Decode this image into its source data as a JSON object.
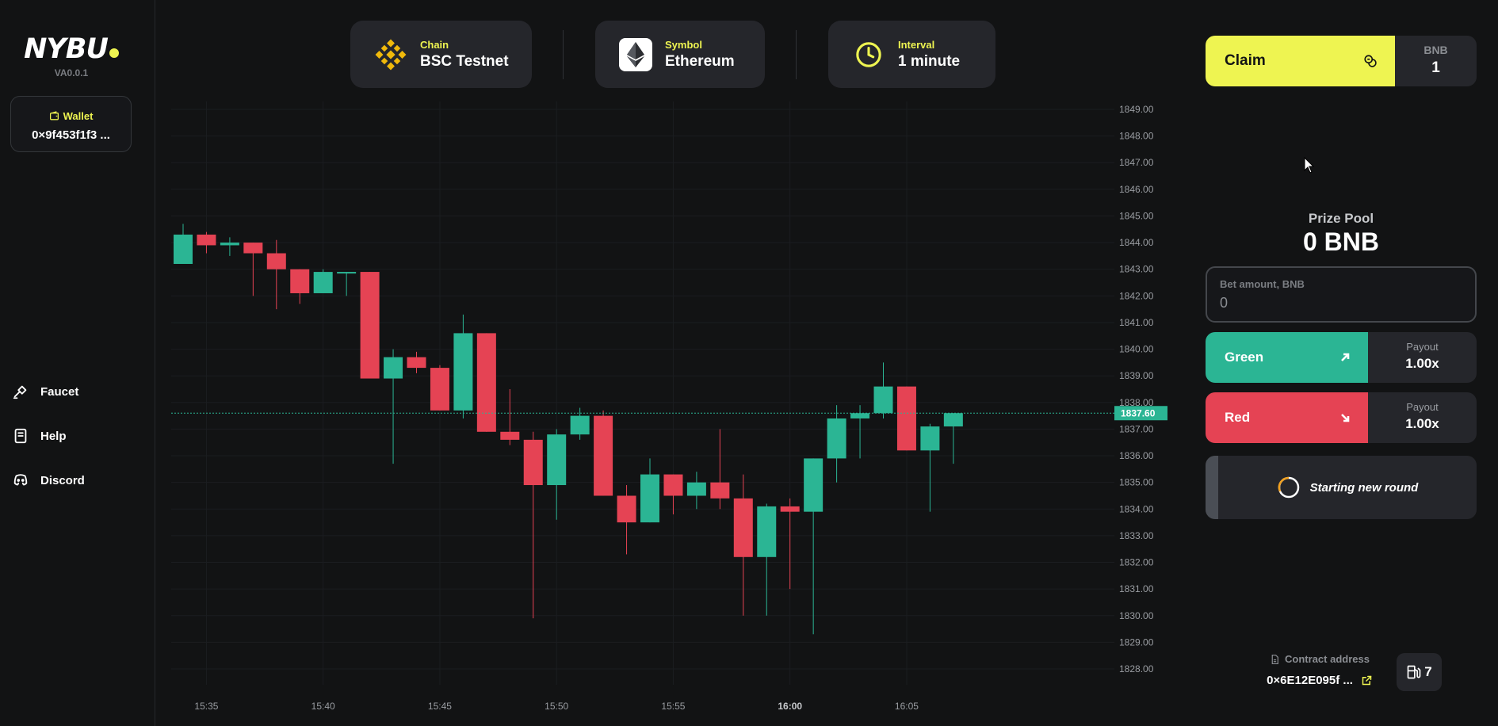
{
  "app": {
    "logo": "NYBU",
    "version": "VA0.0.1"
  },
  "wallet": {
    "label": "Wallet",
    "address": "0×9f453f1f3 ..."
  },
  "nav": {
    "faucet": "Faucet",
    "help": "Help",
    "discord": "Discord"
  },
  "selectors": {
    "chain": {
      "label": "Chain",
      "value": "BSC Testnet",
      "icon": "binance-icon"
    },
    "symbol": {
      "label": "Symbol",
      "value": "Ethereum",
      "icon": "ethereum-icon"
    },
    "interval": {
      "label": "Interval",
      "value": "1 minute",
      "icon": "clock-icon"
    }
  },
  "claim": {
    "label": "Claim",
    "currency": "BNB",
    "amount": "1"
  },
  "prize_pool": {
    "label": "Prize Pool",
    "value": "0 BNB"
  },
  "bet": {
    "label": "Bet amount, BNB",
    "value": "0"
  },
  "green": {
    "label": "Green",
    "payout_label": "Payout",
    "payout": "1.00x"
  },
  "red": {
    "label": "Red",
    "payout_label": "Payout",
    "payout": "1.00x"
  },
  "status": {
    "text": "Starting new round"
  },
  "contract": {
    "label": "Contract address",
    "address": "0×6E12E095f ..."
  },
  "gas": {
    "value": "7"
  },
  "colors": {
    "accent": "#eef451",
    "up": "#2bb594",
    "down": "#e54354",
    "background": "#121314",
    "panel": "#25262b"
  },
  "chart_data": {
    "type": "candlestick",
    "ylim": [
      1828,
      1849
    ],
    "y_ticks": [
      "1849.00",
      "1848.00",
      "1847.00",
      "1846.00",
      "1845.00",
      "1844.00",
      "1843.00",
      "1842.00",
      "1841.00",
      "1840.00",
      "1839.00",
      "1838.00",
      "1837.00",
      "1836.00",
      "1835.00",
      "1834.00",
      "1833.00",
      "1832.00",
      "1831.00",
      "1830.00",
      "1829.00",
      "1828.00"
    ],
    "x_ticks": [
      "15:35",
      "15:40",
      "15:45",
      "15:50",
      "15:55",
      "16:00",
      "16:05"
    ],
    "x_tick_bold": "16:00",
    "current_price": 1837.6,
    "current_price_label": "1837.60",
    "candles": [
      {
        "o": 1843.2,
        "h": 1844.7,
        "l": 1843.2,
        "c": 1844.3
      },
      {
        "o": 1844.3,
        "h": 1844.4,
        "l": 1843.6,
        "c": 1843.9
      },
      {
        "o": 1843.9,
        "h": 1844.2,
        "l": 1843.5,
        "c": 1844.0
      },
      {
        "o": 1844.0,
        "h": 1844.0,
        "l": 1842.0,
        "c": 1843.6
      },
      {
        "o": 1843.6,
        "h": 1844.1,
        "l": 1841.5,
        "c": 1843.0
      },
      {
        "o": 1843.0,
        "h": 1843.0,
        "l": 1841.7,
        "c": 1842.1
      },
      {
        "o": 1842.1,
        "h": 1843.0,
        "l": 1842.1,
        "c": 1842.9
      },
      {
        "o": 1842.9,
        "h": 1842.9,
        "l": 1842.0,
        "c": 1842.9
      },
      {
        "o": 1842.9,
        "h": 1842.9,
        "l": 1838.9,
        "c": 1838.9
      },
      {
        "o": 1838.9,
        "h": 1840.0,
        "l": 1835.7,
        "c": 1839.7
      },
      {
        "o": 1839.7,
        "h": 1839.9,
        "l": 1839.1,
        "c": 1839.3
      },
      {
        "o": 1839.3,
        "h": 1839.4,
        "l": 1837.7,
        "c": 1837.7
      },
      {
        "o": 1837.7,
        "h": 1841.3,
        "l": 1837.4,
        "c": 1840.6
      },
      {
        "o": 1840.6,
        "h": 1840.6,
        "l": 1836.9,
        "c": 1836.9
      },
      {
        "o": 1836.9,
        "h": 1838.5,
        "l": 1836.4,
        "c": 1836.6
      },
      {
        "o": 1836.6,
        "h": 1836.9,
        "l": 1829.9,
        "c": 1834.9
      },
      {
        "o": 1834.9,
        "h": 1837.0,
        "l": 1833.6,
        "c": 1836.8
      },
      {
        "o": 1836.8,
        "h": 1837.8,
        "l": 1836.6,
        "c": 1837.5
      },
      {
        "o": 1837.5,
        "h": 1837.7,
        "l": 1834.5,
        "c": 1834.5
      },
      {
        "o": 1834.5,
        "h": 1834.9,
        "l": 1832.3,
        "c": 1833.5
      },
      {
        "o": 1833.5,
        "h": 1835.9,
        "l": 1833.5,
        "c": 1835.3
      },
      {
        "o": 1835.3,
        "h": 1835.3,
        "l": 1833.8,
        "c": 1834.5
      },
      {
        "o": 1834.5,
        "h": 1835.4,
        "l": 1834.0,
        "c": 1835.0
      },
      {
        "o": 1835.0,
        "h": 1837.0,
        "l": 1834.0,
        "c": 1834.4
      },
      {
        "o": 1834.4,
        "h": 1835.3,
        "l": 1830.0,
        "c": 1832.2
      },
      {
        "o": 1832.2,
        "h": 1834.2,
        "l": 1830.0,
        "c": 1834.1
      },
      {
        "o": 1834.1,
        "h": 1834.4,
        "l": 1831.0,
        "c": 1833.9
      },
      {
        "o": 1833.9,
        "h": 1835.9,
        "l": 1829.3,
        "c": 1835.9
      },
      {
        "o": 1835.9,
        "h": 1837.9,
        "l": 1835.0,
        "c": 1837.4
      },
      {
        "o": 1837.4,
        "h": 1837.9,
        "l": 1835.9,
        "c": 1837.6
      },
      {
        "o": 1837.6,
        "h": 1839.5,
        "l": 1837.4,
        "c": 1838.6
      },
      {
        "o": 1838.6,
        "h": 1838.6,
        "l": 1836.2,
        "c": 1836.2
      },
      {
        "o": 1836.2,
        "h": 1837.2,
        "l": 1833.9,
        "c": 1837.1
      },
      {
        "o": 1837.1,
        "h": 1837.6,
        "l": 1835.7,
        "c": 1837.6
      }
    ]
  }
}
